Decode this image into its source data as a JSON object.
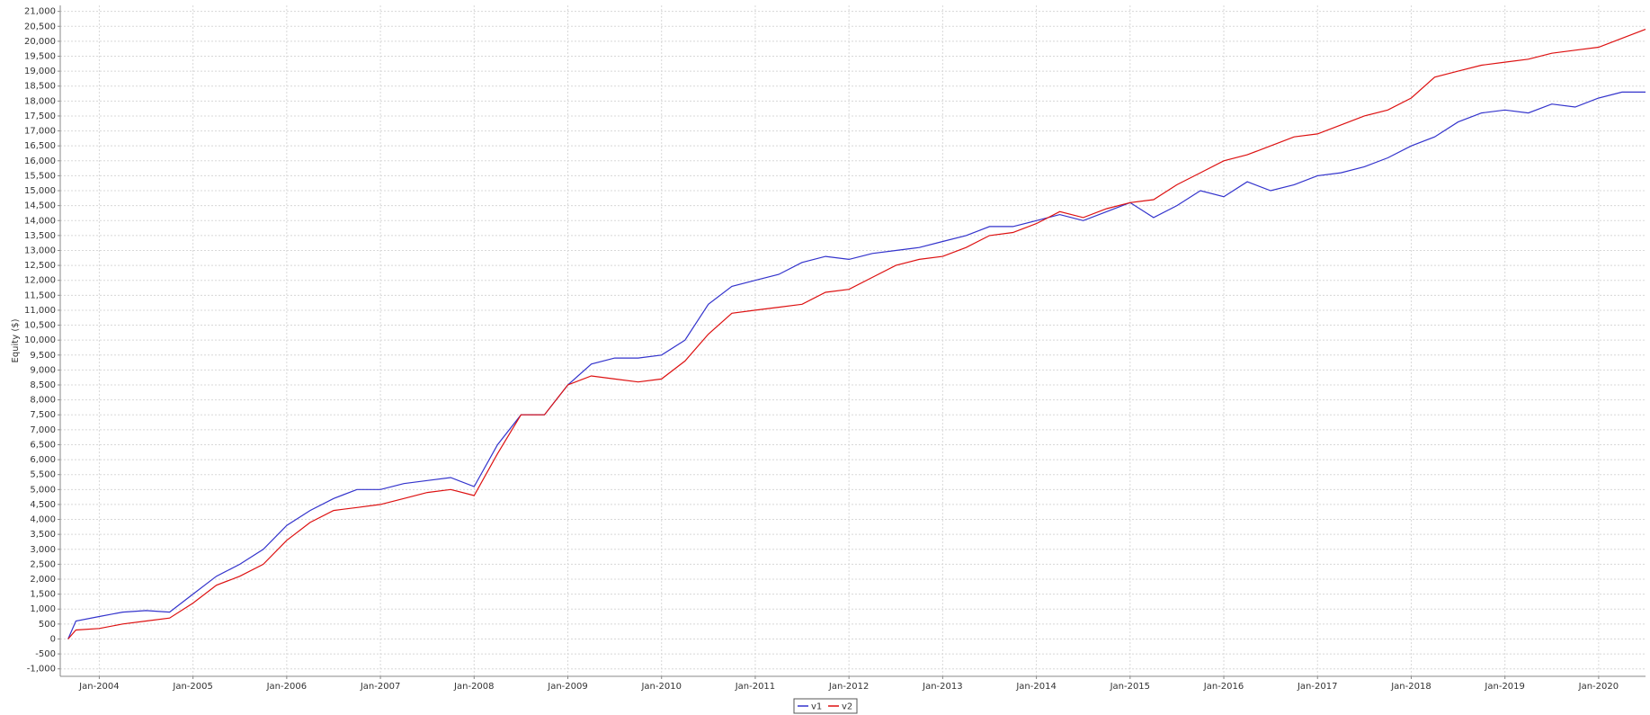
{
  "chart_data": {
    "type": "line",
    "y_label": "Equity ($)",
    "x": [
      "2003-09",
      "2003-10",
      "2004-01",
      "2004-04",
      "2004-07",
      "2004-10",
      "2005-01",
      "2005-04",
      "2005-07",
      "2005-10",
      "2006-01",
      "2006-04",
      "2006-07",
      "2006-10",
      "2007-01",
      "2007-04",
      "2007-07",
      "2007-10",
      "2008-01",
      "2008-04",
      "2008-07",
      "2008-10",
      "2009-01",
      "2009-04",
      "2009-07",
      "2009-10",
      "2010-01",
      "2010-04",
      "2010-07",
      "2010-10",
      "2011-01",
      "2011-04",
      "2011-07",
      "2011-10",
      "2012-01",
      "2012-04",
      "2012-07",
      "2012-10",
      "2013-01",
      "2013-04",
      "2013-07",
      "2013-10",
      "2014-01",
      "2014-04",
      "2014-07",
      "2014-10",
      "2015-01",
      "2015-04",
      "2015-07",
      "2015-10",
      "2016-01",
      "2016-04",
      "2016-07",
      "2016-10",
      "2017-01",
      "2017-04",
      "2017-07",
      "2017-10",
      "2018-01",
      "2018-04",
      "2018-07",
      "2018-10",
      "2019-01",
      "2019-04",
      "2019-07",
      "2019-10",
      "2020-01",
      "2020-04",
      "2020-07"
    ],
    "series": [
      {
        "name": "v1",
        "color": "#3333cc",
        "values": [
          0,
          600,
          750,
          900,
          950,
          900,
          1500,
          2100,
          2500,
          3000,
          3800,
          4300,
          4700,
          5000,
          5000,
          5200,
          5300,
          5400,
          5100,
          6500,
          7500,
          7500,
          8500,
          9200,
          9400,
          9400,
          9500,
          10000,
          11200,
          11800,
          12000,
          12200,
          12600,
          12800,
          12700,
          12900,
          13000,
          13100,
          13300,
          13500,
          13800,
          13800,
          14000,
          14200,
          14000,
          14300,
          14600,
          14100,
          14500,
          15000,
          14800,
          15300,
          15000,
          15200,
          15500,
          15600,
          15800,
          16100,
          16500,
          16800,
          17300,
          17600,
          17700,
          17600,
          17900,
          17800,
          18100,
          18300,
          18300
        ]
      },
      {
        "name": "v2",
        "color": "#dd1111",
        "values": [
          0,
          300,
          350,
          500,
          600,
          700,
          1200,
          1800,
          2100,
          2500,
          3300,
          3900,
          4300,
          4400,
          4500,
          4700,
          4900,
          5000,
          4800,
          6200,
          7500,
          7500,
          8500,
          8800,
          8700,
          8600,
          8700,
          9300,
          10200,
          10900,
          11000,
          11100,
          11200,
          11600,
          11700,
          12100,
          12500,
          12700,
          12800,
          13100,
          13500,
          13600,
          13900,
          14300,
          14100,
          14400,
          14600,
          14700,
          15200,
          15600,
          16000,
          16200,
          16500,
          16800,
          16900,
          17200,
          17500,
          17700,
          18100,
          18800,
          19000,
          19200,
          19300,
          19400,
          19600,
          19700,
          19800,
          20100,
          20400
        ]
      }
    ],
    "xlim": [
      "2003-08",
      "2020-07"
    ],
    "xticks": [
      {
        "value": "2004-01",
        "label": "Jan-2004"
      },
      {
        "value": "2005-01",
        "label": "Jan-2005"
      },
      {
        "value": "2006-01",
        "label": "Jan-2006"
      },
      {
        "value": "2007-01",
        "label": "Jan-2007"
      },
      {
        "value": "2008-01",
        "label": "Jan-2008"
      },
      {
        "value": "2009-01",
        "label": "Jan-2009"
      },
      {
        "value": "2010-01",
        "label": "Jan-2010"
      },
      {
        "value": "2011-01",
        "label": "Jan-2011"
      },
      {
        "value": "2012-01",
        "label": "Jan-2012"
      },
      {
        "value": "2013-01",
        "label": "Jan-2013"
      },
      {
        "value": "2014-01",
        "label": "Jan-2014"
      },
      {
        "value": "2015-01",
        "label": "Jan-2015"
      },
      {
        "value": "2016-01",
        "label": "Jan-2016"
      },
      {
        "value": "2017-01",
        "label": "Jan-2017"
      },
      {
        "value": "2018-01",
        "label": "Jan-2018"
      },
      {
        "value": "2019-01",
        "label": "Jan-2019"
      },
      {
        "value": "2020-01",
        "label": "Jan-2020"
      }
    ],
    "ylim": [
      -1250,
      21200
    ],
    "yticks": [
      {
        "value": -1000,
        "label": "-1,000"
      },
      -500,
      0,
      500,
      {
        "value": 1000,
        "label": "1,000"
      },
      {
        "value": 1500,
        "label": "1,500"
      },
      {
        "value": 2000,
        "label": "2,000"
      },
      {
        "value": 2500,
        "label": "2,500"
      },
      {
        "value": 3000,
        "label": "3,000"
      },
      {
        "value": 3500,
        "label": "3,500"
      },
      {
        "value": 4000,
        "label": "4,000"
      },
      {
        "value": 4500,
        "label": "4,500"
      },
      {
        "value": 5000,
        "label": "5,000"
      },
      {
        "value": 5500,
        "label": "5,500"
      },
      {
        "value": 6000,
        "label": "6,000"
      },
      {
        "value": 6500,
        "label": "6,500"
      },
      {
        "value": 7000,
        "label": "7,000"
      },
      {
        "value": 7500,
        "label": "7,500"
      },
      {
        "value": 8000,
        "label": "8,000"
      },
      {
        "value": 8500,
        "label": "8,500"
      },
      {
        "value": 9000,
        "label": "9,000"
      },
      {
        "value": 9500,
        "label": "9,500"
      },
      {
        "value": 10000,
        "label": "10,000"
      },
      {
        "value": 10500,
        "label": "10,500"
      },
      {
        "value": 11000,
        "label": "11,000"
      },
      {
        "value": 11500,
        "label": "11,500"
      },
      {
        "value": 12000,
        "label": "12,000"
      },
      {
        "value": 12500,
        "label": "12,500"
      },
      {
        "value": 13000,
        "label": "13,000"
      },
      {
        "value": 13500,
        "label": "13,500"
      },
      {
        "value": 14000,
        "label": "14,000"
      },
      {
        "value": 14500,
        "label": "14,500"
      },
      {
        "value": 15000,
        "label": "15,000"
      },
      {
        "value": 15500,
        "label": "15,500"
      },
      {
        "value": 16000,
        "label": "16,000"
      },
      {
        "value": 16500,
        "label": "16,500"
      },
      {
        "value": 17000,
        "label": "17,000"
      },
      {
        "value": 17500,
        "label": "17,500"
      },
      {
        "value": 18000,
        "label": "18,000"
      },
      {
        "value": 18500,
        "label": "18,500"
      },
      {
        "value": 19000,
        "label": "19,000"
      },
      {
        "value": 19500,
        "label": "19,500"
      },
      {
        "value": 20000,
        "label": "20,000"
      },
      {
        "value": 20500,
        "label": "20,500"
      },
      {
        "value": 21000,
        "label": "21,000"
      }
    ],
    "grid": true
  }
}
